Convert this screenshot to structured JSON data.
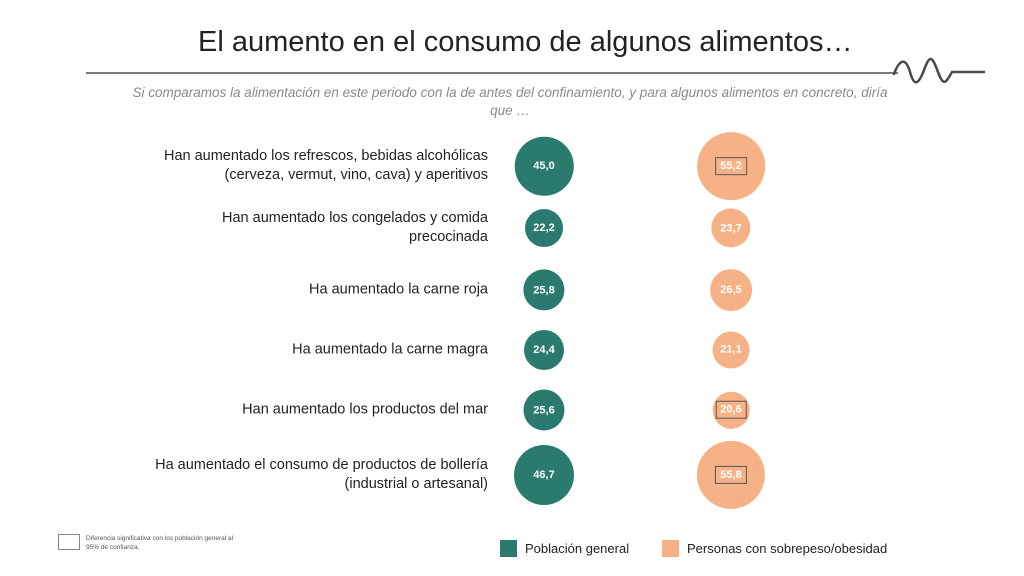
{
  "title": "El aumento en el consumo de algunos alimentos…",
  "subtitle": "Si comparamos la alimentación en este periodo con la de antes del confinamiento, y para algunos alimentos en concreto, diría que …",
  "colors": {
    "general": "#2a7a6e",
    "overweight": "#f7b186",
    "sig_border": "#555555"
  },
  "footnote": "Diferencia significativa con los población general al 95% de confianza.",
  "chart_data": {
    "type": "bubble",
    "title": "El aumento en el consumo de algunos alimentos…",
    "series": [
      {
        "name": "Población general",
        "values": [
          45.0,
          22.2,
          25.8,
          24.4,
          25.6,
          46.7
        ]
      },
      {
        "name": "Personas con sobrepeso/obesidad",
        "values": [
          55.2,
          23.7,
          26.5,
          21.1,
          20.6,
          55.8
        ]
      }
    ],
    "categories": [
      "Han aumentado los refrescos, bebidas alcohólicas (cerveza, vermut, vino, cava) y aperitivos",
      "Han aumentado los congelados y comida precocinada",
      "Ha aumentado la carne roja",
      "Ha aumentado la carne magra",
      "Han aumentado los productos del mar",
      "Ha aumentado el consumo de productos de bollería (industrial o artesanal)"
    ],
    "rows": [
      {
        "line1": "Han aumentado los refrescos, bebidas alcohólicas",
        "line2": "(cerveza, vermut, vino, cava) y aperitivos",
        "general": "45,0",
        "general_v": 45.0,
        "over": "55,2",
        "over_v": 55.2,
        "over_sig": true
      },
      {
        "line1": "Han aumentado los congelados y comida",
        "line2": "precocinada",
        "general": "22,2",
        "general_v": 22.2,
        "over": "23,7",
        "over_v": 23.7,
        "over_sig": false
      },
      {
        "line1": "Ha aumentado la carne roja",
        "line2": "",
        "general": "25,8",
        "general_v": 25.8,
        "over": "26,5",
        "over_v": 26.5,
        "over_sig": false
      },
      {
        "line1": "Ha aumentado la carne magra",
        "line2": "",
        "general": "24,4",
        "general_v": 24.4,
        "over": "21,1",
        "over_v": 21.1,
        "over_sig": false
      },
      {
        "line1": "Han aumentado los productos del mar",
        "line2": "",
        "general": "25,6",
        "general_v": 25.6,
        "over": "20,6",
        "over_v": 20.6,
        "over_sig": true
      },
      {
        "line1": "Ha aumentado el consumo de productos de bollería",
        "line2": "(industrial o artesanal)",
        "general": "46,7",
        "general_v": 46.7,
        "over": "55,8",
        "over_v": 55.8,
        "over_sig": true
      }
    ],
    "legend": [
      {
        "label": "Población general",
        "color": "#2a7a6e"
      },
      {
        "label": "Personas con sobrepeso/obesidad",
        "color": "#f7b186"
      }
    ]
  }
}
